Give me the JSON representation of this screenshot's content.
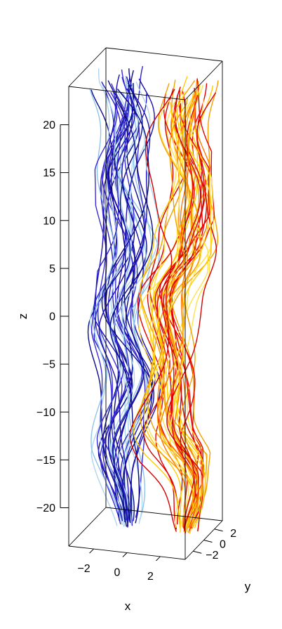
{
  "chart_data": {
    "type": "3d-line",
    "title": "",
    "xlabel": "x",
    "ylabel": "y",
    "zlabel": "z",
    "xlim": [
      -3.5,
      3.5
    ],
    "ylim": [
      -3.5,
      3.5
    ],
    "zlim": [
      -24,
      24
    ],
    "x_ticks": [
      -2,
      0,
      2
    ],
    "y_ticks": [
      -2,
      0,
      2
    ],
    "z_ticks": [
      -20,
      -15,
      -10,
      -5,
      0,
      5,
      10,
      15,
      20
    ],
    "x_tick_labels": [
      "−2",
      "0",
      "2"
    ],
    "y_tick_labels": [
      "−2",
      "0",
      "2"
    ],
    "z_tick_labels": [
      "−20",
      "−15",
      "−10",
      "−5",
      "0",
      "5",
      "10",
      "15",
      "20"
    ],
    "box": true,
    "grid": false,
    "bundles": [
      {
        "colors": [
          "#1a0fb0",
          "#3b2cd6",
          "#0b0b8a",
          "#2a22c4",
          "#aed6ef",
          "#8fc4ea"
        ],
        "line_count": 38,
        "z_range": [
          -22.5,
          23
        ],
        "spread": 1.2,
        "centerline": [
          {
            "z": -22.5,
            "x": -0.6,
            "y": -1.6
          },
          {
            "z": -15,
            "x": -1.4,
            "y": -1.2
          },
          {
            "z": -8,
            "x": -0.8,
            "y": -0.4
          },
          {
            "z": -2,
            "x": -2.2,
            "y": 0.4
          },
          {
            "z": 5,
            "x": -1.6,
            "y": 1.4
          },
          {
            "z": 12,
            "x": -2.2,
            "y": 1.6
          },
          {
            "z": 18,
            "x": -1.6,
            "y": 2.0
          },
          {
            "z": 23,
            "x": -2.0,
            "y": 1.6
          }
        ]
      },
      {
        "colors": [
          "#e80000",
          "#f2a000",
          "#ffcc00",
          "#ff7a00",
          "#d40000",
          "#ffe14d"
        ],
        "line_count": 42,
        "z_range": [
          -22.5,
          23
        ],
        "spread": 1.2,
        "centerline": [
          {
            "z": -22.5,
            "x": 2.8,
            "y": -1.4
          },
          {
            "z": -18,
            "x": 3.0,
            "y": -0.6
          },
          {
            "z": -12,
            "x": 1.2,
            "y": -0.2
          },
          {
            "z": -6,
            "x": 1.4,
            "y": 0.4
          },
          {
            "z": 0,
            "x": 0.8,
            "y": 1.0
          },
          {
            "z": 6,
            "x": 2.0,
            "y": 1.2
          },
          {
            "z": 12,
            "x": 2.4,
            "y": 1.2
          },
          {
            "z": 18,
            "x": 1.6,
            "y": 1.6
          },
          {
            "z": 23,
            "x": 2.0,
            "y": 1.8
          }
        ]
      }
    ]
  }
}
